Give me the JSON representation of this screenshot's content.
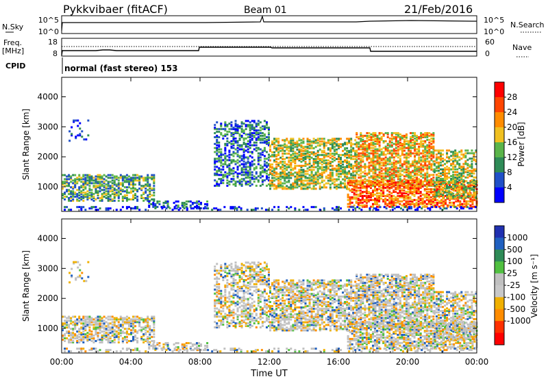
{
  "header": {
    "station": "Pykkvibaer (fitACF)",
    "beam": "Beam 01",
    "date": "21/Feb/2016"
  },
  "strip_nsky": {
    "left_label": "N.Sky",
    "left_ticks": [
      "10^5",
      "10^0"
    ],
    "right_label": "N.Search",
    "right_ticks": [
      "10^5",
      "10^0"
    ]
  },
  "strip_freq": {
    "left_label_1": "Freq.",
    "left_label_2": "[MHz]",
    "left_ticks": [
      "18",
      "8"
    ],
    "right_label": "Nave",
    "right_ticks": [
      "60",
      "0"
    ]
  },
  "cpid": {
    "label": "CPID",
    "text": "normal (fast stereo) 153"
  },
  "colors": {
    "power_scale": [
      "#0000ff",
      "#2050c8",
      "#2e8b57",
      "#5ab44a",
      "#f0c020",
      "#ff8c00",
      "#ff4500",
      "#ff0000"
    ],
    "velocity_scale": [
      "#2030b0",
      "#2060c0",
      "#2e8b57",
      "#50c040",
      "#c0c0c0",
      "#c8c8c8",
      "#f0b000",
      "#ff8c00",
      "#ff3000",
      "#ff0000"
    ],
    "ground_scatter": "#c0c0c0"
  },
  "chart_data": [
    {
      "type": "heatmap",
      "panel": "power",
      "x_ticks": [
        "00:00",
        "04:00",
        "08:00",
        "12:00",
        "16:00",
        "20:00",
        "00:00"
      ],
      "xlim_hours": [
        0,
        24
      ],
      "ylabel": "Slant Range [km]",
      "y_ticks": [
        1000,
        2000,
        3000,
        4000
      ],
      "ylim_km": [
        180,
        4650
      ],
      "colorbar": {
        "label": "Power [dB]",
        "ticks": [
          4,
          8,
          12,
          16,
          20,
          24,
          28
        ],
        "range": [
          0,
          32
        ]
      }
    },
    {
      "type": "heatmap",
      "panel": "velocity",
      "x_ticks": [
        "00:00",
        "04:00",
        "08:00",
        "12:00",
        "16:00",
        "20:00",
        "00:00"
      ],
      "xlim_hours": [
        0,
        24
      ],
      "xlabel": "Time UT",
      "ylabel": "Slant Range [km]",
      "y_ticks": [
        1000,
        2000,
        3000,
        4000
      ],
      "ylim_km": [
        180,
        4650
      ],
      "colorbar": {
        "label": "Velocity [m s⁻¹]",
        "ticks": [
          "1000",
          "500",
          "100",
          "25",
          "-25",
          "-100",
          "-500",
          "-1000"
        ]
      }
    }
  ]
}
